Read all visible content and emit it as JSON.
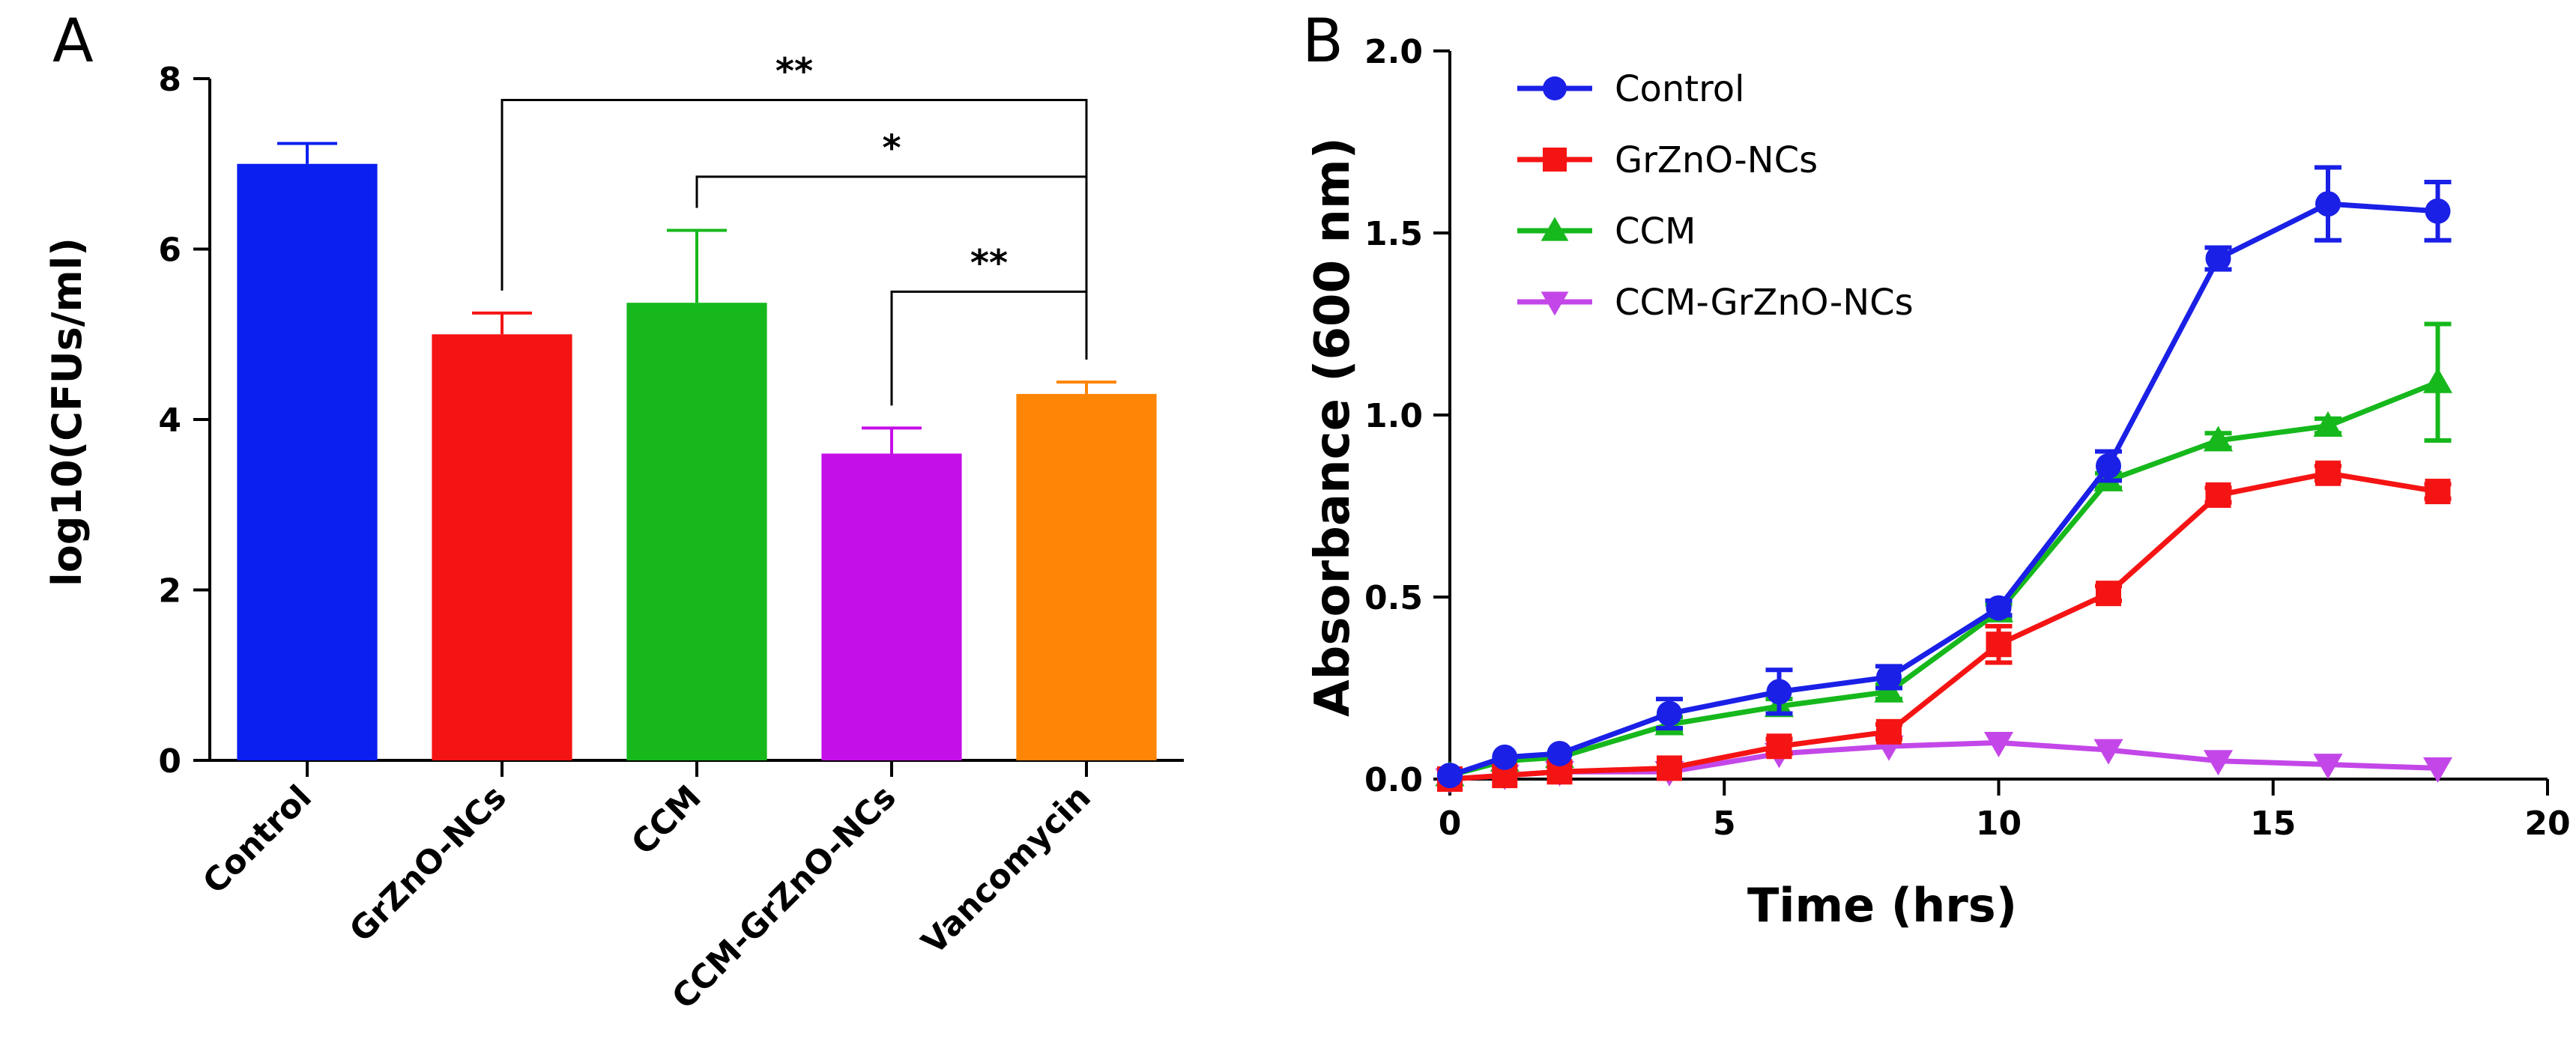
{
  "panel_a_letter": "A",
  "panel_b_letter": "B",
  "chart_data": [
    {
      "panel": "A",
      "type": "bar",
      "categories": [
        "Control",
        "GrZnO-NCs",
        "CCM",
        "CCM-GrZnO-NCs",
        "Vancomycin"
      ],
      "values": [
        7.0,
        5.0,
        5.37,
        3.6,
        4.3
      ],
      "errors": [
        0.24,
        0.25,
        0.85,
        0.3,
        0.14
      ],
      "colors": [
        "#0a1ff0",
        "#f51414",
        "#16b81c",
        "#c50fe8",
        "#ff8506"
      ],
      "xlabel": "",
      "ylabel": "log10(CFUs/ml)",
      "ylim": [
        0,
        8
      ],
      "yticks": [
        "0",
        "2",
        "4",
        "6",
        "8"
      ],
      "yticks_values": [
        0,
        2,
        4,
        6,
        8
      ],
      "significance": [
        {
          "from": 1,
          "to": 4,
          "label": "**",
          "level": 7.75
        },
        {
          "from": 2,
          "to": 4,
          "label": "*",
          "level": 6.85
        },
        {
          "from": 3,
          "to": 4,
          "label": "**",
          "level": 5.5
        }
      ]
    },
    {
      "panel": "B",
      "type": "line",
      "title": "",
      "xlabel": "Time (hrs)",
      "ylabel": "Absorbance (600 nm)",
      "xlim": [
        0,
        20
      ],
      "ylim": [
        0,
        2.0
      ],
      "xticks": [
        "0",
        "5",
        "10",
        "15",
        "20"
      ],
      "xticks_values": [
        0,
        5,
        10,
        15,
        20
      ],
      "yticks": [
        "0.0",
        "0.5",
        "1.0",
        "1.5",
        "2.0"
      ],
      "yticks_values": [
        0,
        0.5,
        1.0,
        1.5,
        2.0
      ],
      "legend_position": "top-left",
      "series": [
        {
          "name": "Control",
          "color": "#1a20e6",
          "marker": "circle",
          "x": [
            0,
            1,
            2,
            4,
            6,
            8,
            10,
            12,
            14,
            16,
            18
          ],
          "y": [
            0.01,
            0.06,
            0.07,
            0.18,
            0.24,
            0.28,
            0.47,
            0.86,
            1.43,
            1.58,
            1.56
          ],
          "err": [
            0.01,
            0.01,
            0.01,
            0.04,
            0.06,
            0.03,
            0.02,
            0.04,
            0.03,
            0.1,
            0.08
          ]
        },
        {
          "name": "GrZnO-NCs",
          "color": "#f51414",
          "marker": "square",
          "x": [
            0,
            1,
            2,
            4,
            6,
            8,
            10,
            12,
            14,
            16,
            18
          ],
          "y": [
            0.0,
            0.01,
            0.02,
            0.03,
            0.09,
            0.13,
            0.37,
            0.51,
            0.78,
            0.84,
            0.79
          ],
          "err": [
            0.01,
            0.01,
            0.01,
            0.01,
            0.02,
            0.02,
            0.05,
            0.02,
            0.02,
            0.02,
            0.02
          ]
        },
        {
          "name": "CCM",
          "color": "#16b81c",
          "marker": "triangle-up",
          "x": [
            0,
            1,
            2,
            4,
            6,
            8,
            10,
            12,
            14,
            16,
            18
          ],
          "y": [
            0.01,
            0.05,
            0.06,
            0.15,
            0.2,
            0.24,
            0.46,
            0.82,
            0.93,
            0.97,
            1.09
          ],
          "err": [
            0.01,
            0.01,
            0.01,
            0.02,
            0.02,
            0.02,
            0.02,
            0.02,
            0.02,
            0.02,
            0.16
          ]
        },
        {
          "name": "CCM-GrZnO-NCs",
          "color": "#c347e8",
          "marker": "triangle-down",
          "x": [
            0,
            1,
            2,
            4,
            6,
            8,
            10,
            12,
            14,
            16,
            18
          ],
          "y": [
            0.0,
            0.01,
            0.02,
            0.02,
            0.07,
            0.09,
            0.1,
            0.08,
            0.05,
            0.04,
            0.03
          ],
          "err": [
            0.0,
            0.0,
            0.0,
            0.0,
            0.01,
            0.01,
            0.01,
            0.01,
            0.01,
            0.01,
            0.01
          ]
        }
      ]
    }
  ]
}
